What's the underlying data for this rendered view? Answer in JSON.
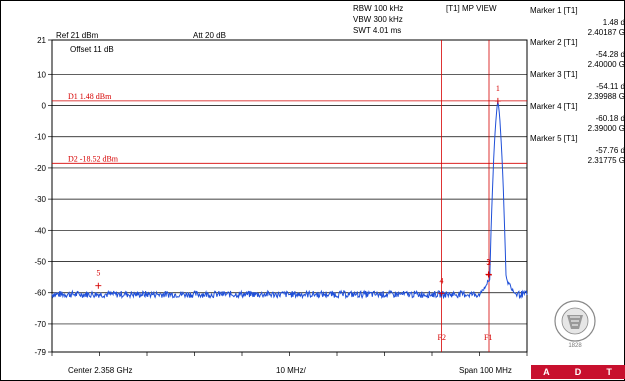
{
  "header": {
    "rbw": "RBW 100 kHz",
    "vbw": "VBW 300 kHz",
    "swt": "SWT 4.01 ms",
    "view": "[T1] MP VIEW",
    "ref": "Ref 21 dBm",
    "att": "Att 20 dB",
    "offset": "Offset 11 dB"
  },
  "markers": [
    {
      "label": "Marker 1 [T1]",
      "level": "1.48 d",
      "freq": "2.40187 G"
    },
    {
      "label": "Marker 2 [T1]",
      "level": "-54.28 d",
      "freq": "2.40000 G"
    },
    {
      "label": "Marker 3 [T1]",
      "level": "-54.11 d",
      "freq": "2.39988 G"
    },
    {
      "label": "Marker 4 [T1]",
      "level": "-60.18 d",
      "freq": "2.39000 G"
    },
    {
      "label": "Marker 5 [T1]",
      "level": "-57.76 d",
      "freq": "2.31775 G"
    }
  ],
  "lines": {
    "d1": "D1 1.48 dBm",
    "d2": "D2 -18.52 dBm",
    "f1": "F1",
    "f2": "F2"
  },
  "footer": {
    "center": "Center 2.358 GHz",
    "div": "10 MHz/",
    "span": "Span 100 MHz"
  },
  "logo_text": [
    "A",
    "D",
    "T"
  ],
  "colors": {
    "trace": "#1f4fd8",
    "marker": "#d60000",
    "grid": "#000000"
  },
  "chart_data": {
    "type": "line",
    "y_ticks": [
      "21",
      "10",
      "0",
      "-10",
      "-20",
      "-30",
      "-40",
      "-50",
      "-60",
      "-70",
      "-79"
    ],
    "ylim": [
      -79,
      21
    ],
    "x_center_ghz": 2.358,
    "x_span_mhz": 100,
    "noise_floor_dbm": -60.5,
    "peak": {
      "freq_ghz": 2.40187,
      "level_dbm": 1.48
    },
    "marker_points": [
      {
        "n": "1",
        "freq_ghz": 2.40187,
        "level_dbm": 1.48
      },
      {
        "n": "2",
        "freq_ghz": 2.4,
        "level_dbm": -54.28
      },
      {
        "n": "3",
        "freq_ghz": 2.39988,
        "level_dbm": -54.11
      },
      {
        "n": "4",
        "freq_ghz": 2.39,
        "level_dbm": -60.18
      },
      {
        "n": "5",
        "freq_ghz": 2.31775,
        "level_dbm": -57.76
      }
    ],
    "display_lines_dbm": [
      1.48,
      -18.52
    ],
    "freq_lines_ghz": [
      2.39,
      2.4
    ]
  }
}
